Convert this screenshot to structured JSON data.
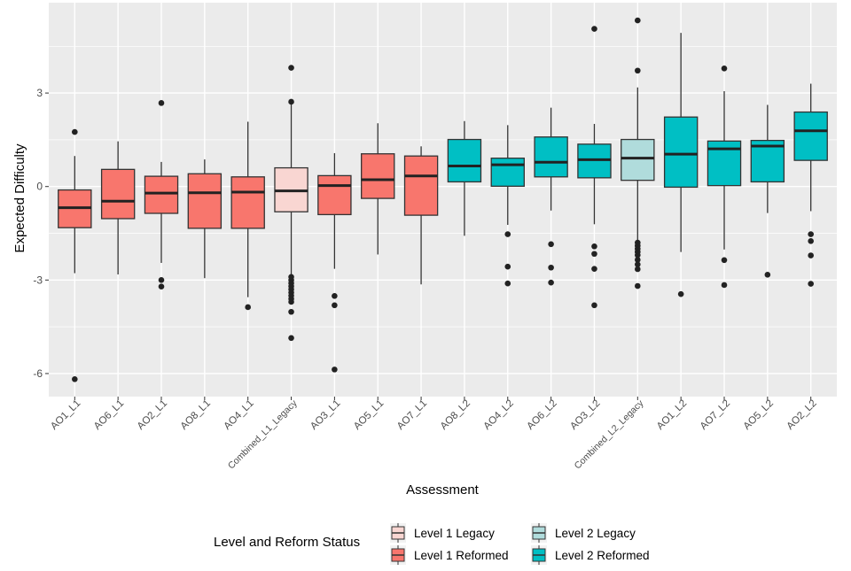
{
  "chart_data": {
    "type": "boxplot",
    "xlabel": "Assessment",
    "ylabel": "Expected Difficulty",
    "ylim": [
      -6.74,
      5.9
    ],
    "yticks": [
      3,
      0,
      -3,
      -6
    ],
    "grid": true,
    "legend": {
      "title": "Level and Reform Status",
      "placement": "bottom",
      "entries": [
        {
          "label": "Level 1 Legacy",
          "color": "#F9D6D2"
        },
        {
          "label": "Level 2 Legacy",
          "color": "#B0DCDC"
        },
        {
          "label": "Level 1 Reformed",
          "color": "#F8766D"
        },
        {
          "label": "Level 2 Reformed",
          "color": "#00BFC4"
        }
      ]
    },
    "categories": [
      "AO1_L1",
      "AO6_L1",
      "AO2_L1",
      "AO8_L1",
      "AO4_L1",
      "Combined_L1_Legacy",
      "AO3_L1",
      "AO5_L1",
      "AO7_L1",
      "AO8_L2",
      "AO4_L2",
      "AO6_L2",
      "AO3_L2",
      "Combined_L2_Legacy",
      "AO1_L2",
      "AO7_L2",
      "AO5_L2",
      "AO2_L2"
    ],
    "groups": [
      "Level 1 Reformed",
      "Level 1 Reformed",
      "Level 1 Reformed",
      "Level 1 Reformed",
      "Level 1 Reformed",
      "Level 1 Legacy",
      "Level 1 Reformed",
      "Level 1 Reformed",
      "Level 1 Reformed",
      "Level 2 Reformed",
      "Level 2 Reformed",
      "Level 2 Reformed",
      "Level 2 Reformed",
      "Level 2 Legacy",
      "Level 2 Reformed",
      "Level 2 Reformed",
      "Level 2 Reformed",
      "Level 2 Reformed"
    ],
    "boxes": [
      {
        "whisker_low": -2.78,
        "q1": -1.32,
        "median": -0.68,
        "q3": -0.11,
        "whisker_high": 0.98,
        "outliers": [
          1.75,
          -6.18
        ]
      },
      {
        "whisker_low": -2.82,
        "q1": -1.03,
        "median": -0.47,
        "q3": 0.55,
        "whisker_high": 1.45,
        "outliers": []
      },
      {
        "whisker_low": -2.45,
        "q1": -0.86,
        "median": -0.21,
        "q3": 0.33,
        "whisker_high": 0.79,
        "outliers": [
          2.68,
          -3.0,
          -3.21
        ]
      },
      {
        "whisker_low": -2.94,
        "q1": -1.34,
        "median": -0.2,
        "q3": 0.41,
        "whisker_high": 0.87,
        "outliers": []
      },
      {
        "whisker_low": -3.55,
        "q1": -1.34,
        "median": -0.18,
        "q3": 0.31,
        "whisker_high": 2.08,
        "outliers": [
          -3.87
        ]
      },
      {
        "whisker_low": -2.82,
        "q1": -0.81,
        "median": -0.14,
        "q3": 0.6,
        "whisker_high": 2.65,
        "outliers": [
          3.81,
          2.72,
          -2.9,
          -3.0,
          -3.1,
          -3.2,
          -3.3,
          -3.4,
          -3.5,
          -3.6,
          -3.7,
          -4.02,
          -4.86
        ]
      },
      {
        "whisker_low": -2.64,
        "q1": -0.9,
        "median": 0.03,
        "q3": 0.35,
        "whisker_high": 1.07,
        "outliers": [
          -3.51,
          -3.81,
          -5.87
        ]
      },
      {
        "whisker_low": -2.18,
        "q1": -0.38,
        "median": 0.22,
        "q3": 1.05,
        "whisker_high": 2.03,
        "outliers": []
      },
      {
        "whisker_low": -3.14,
        "q1": -0.92,
        "median": 0.34,
        "q3": 0.98,
        "whisker_high": 1.29,
        "outliers": []
      },
      {
        "whisker_low": -1.58,
        "q1": 0.15,
        "median": 0.66,
        "q3": 1.51,
        "whisker_high": 2.1,
        "outliers": []
      },
      {
        "whisker_low": -1.23,
        "q1": 0.01,
        "median": 0.7,
        "q3": 0.91,
        "whisker_high": 1.97,
        "outliers": [
          -1.53,
          -2.57,
          -3.11
        ]
      },
      {
        "whisker_low": -0.77,
        "q1": 0.31,
        "median": 0.78,
        "q3": 1.59,
        "whisker_high": 2.53,
        "outliers": [
          -1.85,
          -2.6,
          -3.08
        ]
      },
      {
        "whisker_low": -1.21,
        "q1": 0.28,
        "median": 0.86,
        "q3": 1.36,
        "whisker_high": 2.01,
        "outliers": [
          5.06,
          -1.92,
          -2.16,
          -2.64,
          -3.81
        ]
      },
      {
        "whisker_low": -1.73,
        "q1": 0.2,
        "median": 0.91,
        "q3": 1.51,
        "whisker_high": 3.18,
        "outliers": [
          5.33,
          3.72,
          -1.8,
          -1.9,
          -2.0,
          -2.1,
          -2.2,
          -2.35,
          -2.5,
          -2.65,
          -3.19
        ]
      },
      {
        "whisker_low": -2.1,
        "q1": -0.02,
        "median": 1.04,
        "q3": 2.23,
        "whisker_high": 4.93,
        "outliers": [
          -3.45
        ]
      },
      {
        "whisker_low": -2.02,
        "q1": 0.03,
        "median": 1.21,
        "q3": 1.46,
        "whisker_high": 3.06,
        "outliers": [
          3.79,
          -2.36,
          -3.16
        ]
      },
      {
        "whisker_low": -0.85,
        "q1": 0.15,
        "median": 1.3,
        "q3": 1.48,
        "whisker_high": 2.62,
        "outliers": [
          -2.83
        ]
      },
      {
        "whisker_low": -0.79,
        "q1": 0.84,
        "median": 1.79,
        "q3": 2.39,
        "whisker_high": 3.3,
        "outliers": [
          -1.53,
          -1.75,
          -2.21,
          -3.12
        ]
      }
    ]
  }
}
